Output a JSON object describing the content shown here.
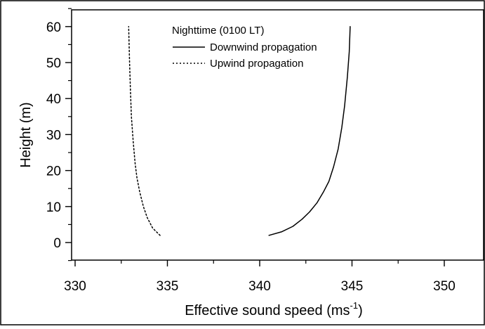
{
  "chart_data": {
    "type": "line",
    "title": "",
    "xlabel_base": "Effective sound speed (ms",
    "xlabel_sup": "-1",
    "xlabel_close": ")",
    "ylabel": "Height (m)",
    "xlim": [
      330,
      350
    ],
    "ylim": [
      -5,
      65
    ],
    "x_ticks": [
      "330",
      "335",
      "340",
      "345",
      "350"
    ],
    "y_ticks": [
      "0",
      "10",
      "20",
      "30",
      "40",
      "50",
      "60"
    ],
    "grid": false,
    "legend_title": "Nighttime (0100 LT)",
    "legend_position": "top-center",
    "series": [
      {
        "name": "Downwind propagation",
        "style": "solid",
        "color": "#000000",
        "points": [
          [
            340.5,
            2
          ],
          [
            341.2,
            3
          ],
          [
            341.8,
            4.5
          ],
          [
            342.3,
            6.5
          ],
          [
            342.7,
            8.5
          ],
          [
            343.1,
            11
          ],
          [
            343.45,
            14
          ],
          [
            343.75,
            17
          ],
          [
            344.0,
            21
          ],
          [
            344.25,
            26
          ],
          [
            344.45,
            32
          ],
          [
            344.6,
            38
          ],
          [
            344.75,
            46
          ],
          [
            344.85,
            53
          ],
          [
            344.9,
            60
          ]
        ]
      },
      {
        "name": "Upwind propagation",
        "style": "dotted",
        "color": "#000000",
        "points": [
          [
            334.6,
            2
          ],
          [
            334.2,
            4
          ],
          [
            333.9,
            7
          ],
          [
            333.7,
            10
          ],
          [
            333.5,
            14
          ],
          [
            333.35,
            18
          ],
          [
            333.25,
            22
          ],
          [
            333.15,
            28
          ],
          [
            333.05,
            35
          ],
          [
            333.0,
            42
          ],
          [
            332.95,
            50
          ],
          [
            332.9,
            60
          ]
        ]
      }
    ]
  }
}
